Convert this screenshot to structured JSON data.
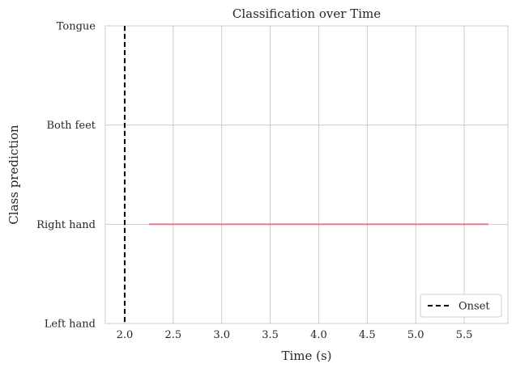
{
  "chart_data": {
    "type": "line",
    "title": "Classification over Time",
    "xlabel": "Time (s)",
    "ylabel": "Class prediction",
    "xlim": [
      1.8,
      5.95
    ],
    "ylim": [
      0,
      3
    ],
    "x_ticks": [
      2.0,
      2.5,
      3.0,
      3.5,
      4.0,
      4.5,
      5.0,
      5.5
    ],
    "x_tick_labels": [
      "2.0",
      "2.5",
      "3.0",
      "3.5",
      "4.0",
      "4.5",
      "5.0",
      "5.5"
    ],
    "y_ticks": [
      0,
      1,
      2,
      3
    ],
    "y_tick_labels": [
      "Left hand",
      "Right hand",
      "Both feet",
      "Tongue"
    ],
    "grid": true,
    "legend_position": "bottom-right",
    "series": [
      {
        "x": [
          2.25,
          5.75
        ],
        "y": [
          1,
          1
        ],
        "color": "#f07080",
        "style": "solid"
      }
    ],
    "vlines": [
      {
        "name": "Onset",
        "x": 2.0,
        "color": "#000000",
        "style": "dashed"
      }
    ],
    "legend": [
      {
        "label": "Onset",
        "style": "dashed",
        "color": "#000000"
      }
    ]
  }
}
